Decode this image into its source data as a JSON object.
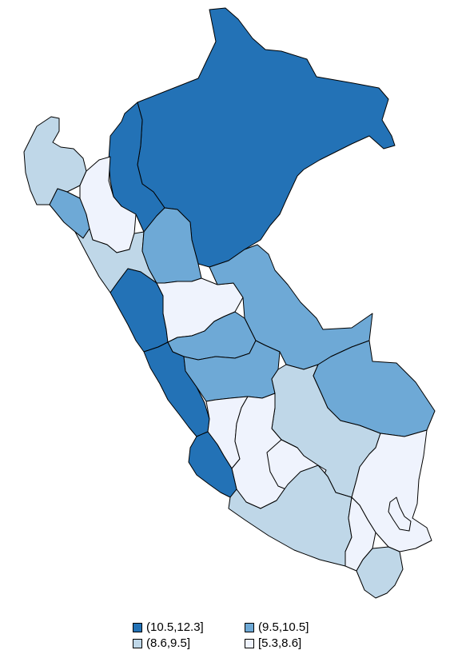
{
  "classes": {
    "c1": {
      "label": "(10.5,12.3]",
      "color": "#2372b6"
    },
    "c2": {
      "label": "(9.5,10.5]",
      "color": "#6ea9d6"
    },
    "c3": {
      "label": "(8.6,9.5]",
      "color": "#bfd7e8"
    },
    "c4": {
      "label": "[5.3,8.6]",
      "color": "#eff3fd"
    }
  },
  "legend": [
    "c1",
    "c2",
    "c3",
    "c4"
  ],
  "map": {
    "type": "choropleth",
    "region": "Peru",
    "boundaries": "departments"
  }
}
